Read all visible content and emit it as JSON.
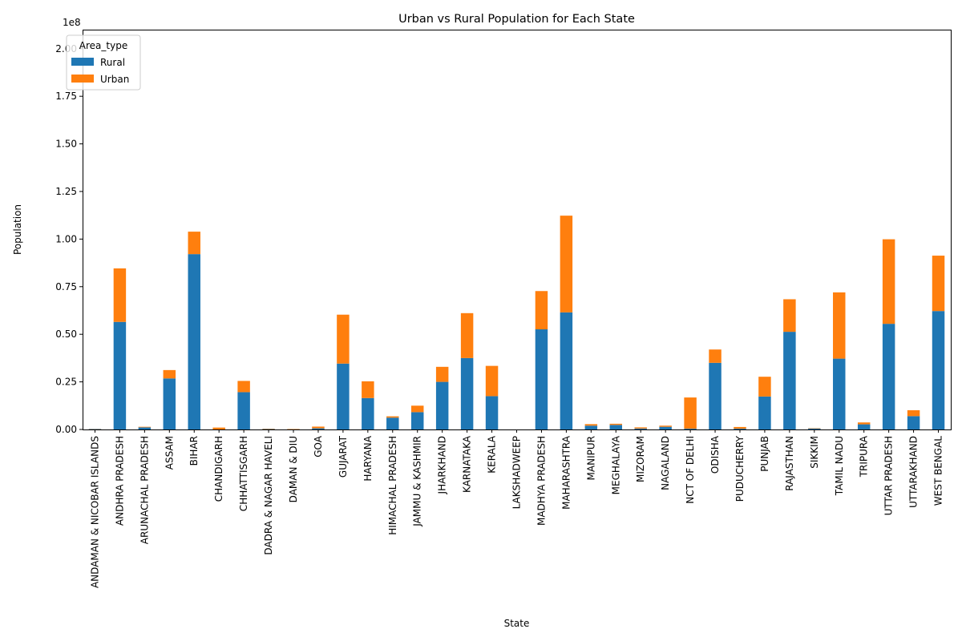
{
  "chart_data": {
    "type": "bar",
    "stacked": true,
    "title": "Urban vs Rural Population for Each State",
    "xlabel": "State",
    "ylabel": "Population",
    "y_offset_label": "1e8",
    "ylim": [
      0,
      2.1
    ],
    "y_scale_multiplier": 100000000,
    "yticks": [
      "0.00",
      "0.25",
      "0.50",
      "0.75",
      "1.00",
      "1.25",
      "1.50",
      "1.75",
      "2.00"
    ],
    "legend": {
      "title": "Area_type",
      "placement": "top-left"
    },
    "categories": [
      "ANDAMAN & NICOBAR ISLANDS",
      "ANDHRA PRADESH",
      "ARUNACHAL PRADESH",
      "ASSAM",
      "BIHAR",
      "CHANDIGARH",
      "CHHATTISGARH",
      "DADRA & NAGAR HAVELI",
      "DAMAN & DIU",
      "GOA",
      "GUJARAT",
      "HARYANA",
      "HIMACHAL PRADESH",
      "JAMMU & KASHMIR",
      "JHARKHAND",
      "KARNATAKA",
      "KERALA",
      "LAKSHADWEEP",
      "MADHYA PRADESH",
      "MAHARASHTRA",
      "MANIPUR",
      "MEGHALAYA",
      "MIZORAM",
      "NAGALAND",
      "NCT OF DELHI",
      "ODISHA",
      "PUDUCHERRY",
      "PUNJAB",
      "RAJASTHAN",
      "SIKKIM",
      "TAMIL NADU",
      "TRIPURA",
      "UTTAR PRADESH",
      "UTTARAKHAND",
      "WEST BENGAL"
    ],
    "series": [
      {
        "name": "Rural",
        "color": "#1f77b4",
        "values": [
          0.002,
          0.565,
          0.011,
          0.268,
          0.921,
          0.0,
          0.196,
          0.002,
          0.001,
          0.006,
          0.346,
          0.165,
          0.062,
          0.091,
          0.25,
          0.375,
          0.175,
          0.0,
          0.526,
          0.615,
          0.02,
          0.024,
          0.005,
          0.014,
          0.004,
          0.35,
          0.004,
          0.173,
          0.513,
          0.005,
          0.372,
          0.027,
          0.555,
          0.07,
          0.622
        ]
      },
      {
        "name": "Urban",
        "color": "#ff7f0e",
        "values": [
          0.001,
          0.281,
          0.003,
          0.044,
          0.118,
          0.01,
          0.059,
          0.002,
          0.002,
          0.009,
          0.257,
          0.088,
          0.007,
          0.034,
          0.079,
          0.236,
          0.159,
          0.0,
          0.201,
          0.508,
          0.008,
          0.006,
          0.006,
          0.006,
          0.164,
          0.07,
          0.009,
          0.104,
          0.171,
          0.002,
          0.348,
          0.01,
          0.444,
          0.031,
          0.291
        ]
      }
    ]
  }
}
